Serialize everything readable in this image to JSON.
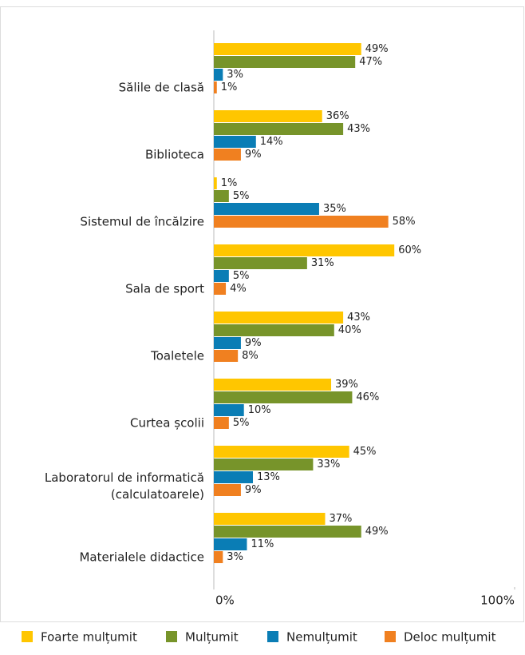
{
  "chart_data": {
    "type": "bar",
    "orientation": "horizontal",
    "categories": [
      "Sălile de clasă",
      "Biblioteca",
      "Sistemul de încălzire",
      "Sala de sport",
      "Toaletele",
      "Curtea școlii",
      "Laboratorul de informatică (calculatoarele)",
      "Materialele didactice"
    ],
    "series": [
      {
        "name": "Foarte mulțumit",
        "color": "#ffc600",
        "values": [
          49,
          36,
          1,
          60,
          43,
          39,
          45,
          37
        ],
        "value_labels": [
          "49%",
          "36%",
          "1%",
          "60%",
          "43%",
          "39%",
          "45%",
          "37%"
        ]
      },
      {
        "name": "Mulțumit",
        "color": "#77942a",
        "values": [
          47,
          43,
          5,
          31,
          40,
          46,
          33,
          49
        ],
        "value_labels": [
          "47%",
          "43%",
          "5%",
          "31%",
          "40%",
          "46%",
          "33%",
          "49%"
        ]
      },
      {
        "name": "Nemulțumit",
        "color": "#0a7db5",
        "values": [
          3,
          14,
          35,
          5,
          9,
          10,
          13,
          11
        ],
        "value_labels": [
          "3%",
          "14%",
          "35%",
          "5%",
          "9%",
          "10%",
          "13%",
          "11%"
        ]
      },
      {
        "name": "Deloc mulțumit",
        "color": "#f08020",
        "values": [
          1,
          9,
          58,
          4,
          8,
          5,
          9,
          3
        ],
        "value_labels": [
          "1%",
          "9%",
          "58%",
          "4%",
          "8%",
          "5%",
          "9%",
          "3%"
        ]
      }
    ],
    "xlim": [
      0,
      100
    ],
    "xticks": [
      {
        "value": 0,
        "label": "0%"
      },
      {
        "value": 100,
        "label": "100%"
      }
    ],
    "legend": "bottom"
  }
}
